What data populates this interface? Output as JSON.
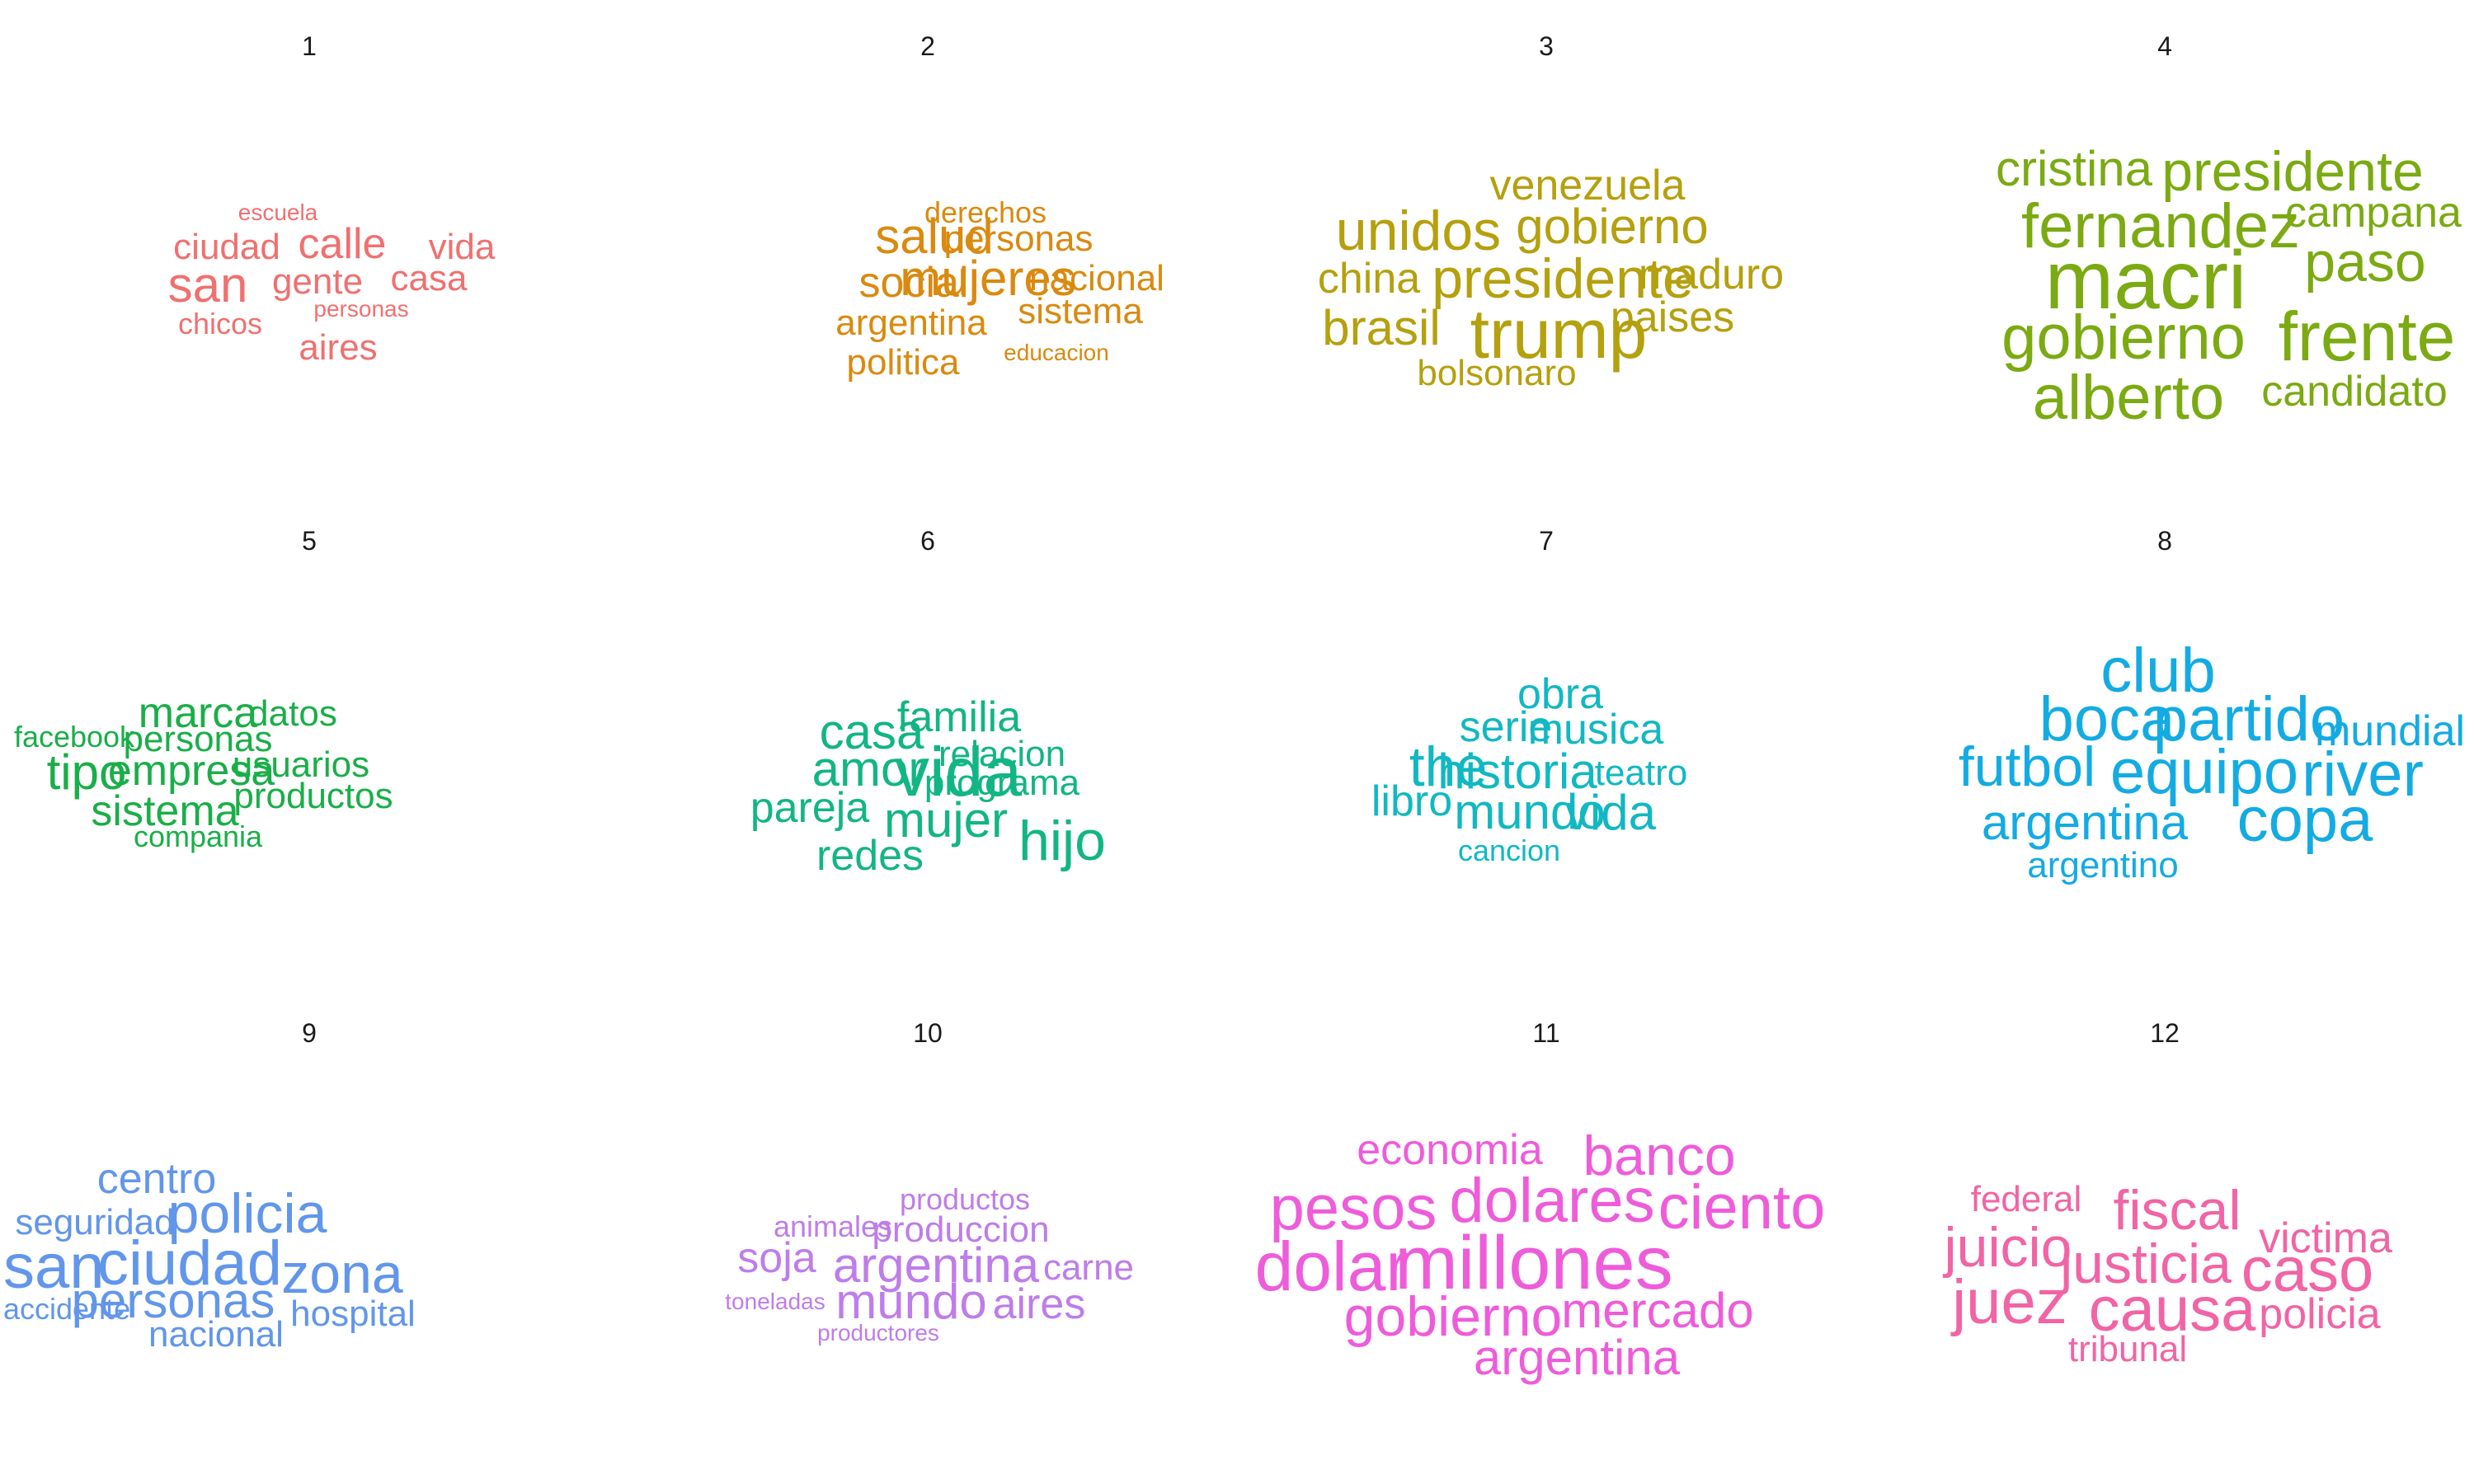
{
  "chart_data": [
    {
      "type": "wordcloud",
      "title": "1",
      "color": "#F07070",
      "words": [
        {
          "text": "escuela",
          "weight": 1
        },
        {
          "text": "ciudad",
          "weight": 3
        },
        {
          "text": "calle",
          "weight": 4
        },
        {
          "text": "vida",
          "weight": 3
        },
        {
          "text": "san",
          "weight": 5
        },
        {
          "text": "gente",
          "weight": 3
        },
        {
          "text": "casa",
          "weight": 3
        },
        {
          "text": "personas",
          "weight": 1
        },
        {
          "text": "chicos",
          "weight": 2
        },
        {
          "text": "aires",
          "weight": 3
        }
      ]
    },
    {
      "type": "wordcloud",
      "title": "2",
      "color": "#D98A0F",
      "words": [
        {
          "text": "derechos",
          "weight": 2
        },
        {
          "text": "salud",
          "weight": 5
        },
        {
          "text": "personas",
          "weight": 3
        },
        {
          "text": "social",
          "weight": 4
        },
        {
          "text": "mujeres",
          "weight": 5
        },
        {
          "text": "nacional",
          "weight": 3
        },
        {
          "text": "sistema",
          "weight": 3
        },
        {
          "text": "argentina",
          "weight": 3
        },
        {
          "text": "politica",
          "weight": 3
        },
        {
          "text": "educacion",
          "weight": 1
        }
      ]
    },
    {
      "type": "wordcloud",
      "title": "3",
      "color": "#B5A00E",
      "words": [
        {
          "text": "venezuela",
          "weight": 4
        },
        {
          "text": "unidos",
          "weight": 6
        },
        {
          "text": "gobierno",
          "weight": 5
        },
        {
          "text": "china",
          "weight": 4
        },
        {
          "text": "presidente",
          "weight": 6
        },
        {
          "text": "maduro",
          "weight": 4
        },
        {
          "text": "brasil",
          "weight": 5
        },
        {
          "text": "trump",
          "weight": 8
        },
        {
          "text": "paises",
          "weight": 4
        },
        {
          "text": "bolsonaro",
          "weight": 3
        }
      ]
    },
    {
      "type": "wordcloud",
      "title": "4",
      "color": "#7BAA12",
      "words": [
        {
          "text": "cristina",
          "weight": 5
        },
        {
          "text": "presidente",
          "weight": 6
        },
        {
          "text": "campana",
          "weight": 4
        },
        {
          "text": "fernandez",
          "weight": 7
        },
        {
          "text": "macri",
          "weight": 10
        },
        {
          "text": "paso",
          "weight": 6
        },
        {
          "text": "gobierno",
          "weight": 7
        },
        {
          "text": "frente",
          "weight": 8
        },
        {
          "text": "alberto",
          "weight": 7
        },
        {
          "text": "candidato",
          "weight": 4
        }
      ]
    },
    {
      "type": "wordcloud",
      "title": "5",
      "color": "#1AAE48",
      "words": [
        {
          "text": "marca",
          "weight": 4
        },
        {
          "text": "datos",
          "weight": 3
        },
        {
          "text": "facebook",
          "weight": 2
        },
        {
          "text": "personas",
          "weight": 3
        },
        {
          "text": "usuarios",
          "weight": 3
        },
        {
          "text": "tipo",
          "weight": 5
        },
        {
          "text": "empresa",
          "weight": 4
        },
        {
          "text": "productos",
          "weight": 3
        },
        {
          "text": "sistema",
          "weight": 4
        },
        {
          "text": "compania",
          "weight": 2
        }
      ]
    },
    {
      "type": "wordcloud",
      "title": "6",
      "color": "#13B584",
      "words": [
        {
          "text": "familia",
          "weight": 4
        },
        {
          "text": "casa",
          "weight": 5
        },
        {
          "text": "relacion",
          "weight": 3
        },
        {
          "text": "amor",
          "weight": 5
        },
        {
          "text": "vida",
          "weight": 8
        },
        {
          "text": "programa",
          "weight": 3
        },
        {
          "text": "pareja",
          "weight": 4
        },
        {
          "text": "mujer",
          "weight": 5
        },
        {
          "text": "hijo",
          "weight": 6
        },
        {
          "text": "redes",
          "weight": 4
        }
      ]
    },
    {
      "type": "wordcloud",
      "title": "7",
      "color": "#11B8C2",
      "words": [
        {
          "text": "obra",
          "weight": 4
        },
        {
          "text": "serie",
          "weight": 4
        },
        {
          "text": "musica",
          "weight": 4
        },
        {
          "text": "the",
          "weight": 6
        },
        {
          "text": "historia",
          "weight": 5
        },
        {
          "text": "teatro",
          "weight": 3
        },
        {
          "text": "libro",
          "weight": 4
        },
        {
          "text": "mundo",
          "weight": 5
        },
        {
          "text": "vida",
          "weight": 5
        },
        {
          "text": "cancion",
          "weight": 2
        }
      ]
    },
    {
      "type": "wordcloud",
      "title": "8",
      "color": "#14ABE3",
      "words": [
        {
          "text": "club",
          "weight": 7
        },
        {
          "text": "boca",
          "weight": 7
        },
        {
          "text": "partido",
          "weight": 7
        },
        {
          "text": "mundial",
          "weight": 4
        },
        {
          "text": "futbol",
          "weight": 6
        },
        {
          "text": "equipo",
          "weight": 7
        },
        {
          "text": "river",
          "weight": 7
        },
        {
          "text": "argentina",
          "weight": 5
        },
        {
          "text": "copa",
          "weight": 7
        },
        {
          "text": "argentino",
          "weight": 3
        }
      ]
    },
    {
      "type": "wordcloud",
      "title": "9",
      "color": "#6196EA",
      "words": [
        {
          "text": "centro",
          "weight": 4
        },
        {
          "text": "seguridad",
          "weight": 3
        },
        {
          "text": "policia",
          "weight": 6
        },
        {
          "text": "san",
          "weight": 7
        },
        {
          "text": "ciudad",
          "weight": 7
        },
        {
          "text": "zona",
          "weight": 6
        },
        {
          "text": "accidente",
          "weight": 2
        },
        {
          "text": "personas",
          "weight": 5
        },
        {
          "text": "hospital",
          "weight": 3
        },
        {
          "text": "nacional",
          "weight": 3
        }
      ]
    },
    {
      "type": "wordcloud",
      "title": "10",
      "color": "#BE7DEA",
      "words": [
        {
          "text": "productos",
          "weight": 2
        },
        {
          "text": "animales",
          "weight": 2
        },
        {
          "text": "produccion",
          "weight": 3
        },
        {
          "text": "soja",
          "weight": 4
        },
        {
          "text": "argentina",
          "weight": 5
        },
        {
          "text": "carne",
          "weight": 3
        },
        {
          "text": "toneladas",
          "weight": 1
        },
        {
          "text": "mundo",
          "weight": 5
        },
        {
          "text": "aires",
          "weight": 4
        },
        {
          "text": "productores",
          "weight": 1
        }
      ]
    },
    {
      "type": "wordcloud",
      "title": "11",
      "color": "#EE5CDA",
      "words": [
        {
          "text": "economia",
          "weight": 4
        },
        {
          "text": "banco",
          "weight": 6
        },
        {
          "text": "pesos",
          "weight": 7
        },
        {
          "text": "dolares",
          "weight": 7
        },
        {
          "text": "ciento",
          "weight": 7
        },
        {
          "text": "dolar",
          "weight": 8
        },
        {
          "text": "millones",
          "weight": 9
        },
        {
          "text": "gobierno",
          "weight": 6
        },
        {
          "text": "mercado",
          "weight": 5
        },
        {
          "text": "argentina",
          "weight": 5
        }
      ]
    },
    {
      "type": "wordcloud",
      "title": "12",
      "color": "#F164A5",
      "words": [
        {
          "text": "federal",
          "weight": 3
        },
        {
          "text": "fiscal",
          "weight": 6
        },
        {
          "text": "victima",
          "weight": 4
        },
        {
          "text": "juicio",
          "weight": 6
        },
        {
          "text": "justicia",
          "weight": 6
        },
        {
          "text": "caso",
          "weight": 7
        },
        {
          "text": "juez",
          "weight": 7
        },
        {
          "text": "causa",
          "weight": 7
        },
        {
          "text": "policia",
          "weight": 4
        },
        {
          "text": "tribunal",
          "weight": 3
        }
      ]
    }
  ]
}
